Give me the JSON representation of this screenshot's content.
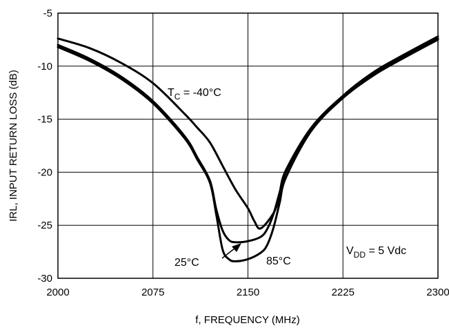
{
  "chart_data": {
    "type": "line",
    "xlabel": "f, FREQUENCY (MHz)",
    "ylabel": "IRL, INPUT RETURN LOSS (dB)",
    "xlim": [
      2000,
      2300
    ],
    "ylim": [
      -30,
      -5
    ],
    "xticks": [
      2000,
      2075,
      2150,
      2225,
      2300
    ],
    "yticks": [
      -5,
      -10,
      -15,
      -20,
      -25,
      -30
    ],
    "grid": true,
    "series": [
      {
        "name": "-40°C",
        "x": [
          2000,
          2025,
          2050,
          2075,
          2100,
          2110,
          2120,
          2130,
          2140,
          2150,
          2155,
          2160,
          2170,
          2175,
          2180,
          2200,
          2225,
          2250,
          2275,
          2300
        ],
        "y": [
          -7.4,
          -8.3,
          -9.7,
          -11.6,
          -14.5,
          -15.8,
          -17.2,
          -19.4,
          -21.6,
          -23.4,
          -24.6,
          -25.3,
          -23.9,
          -22.3,
          -20.0,
          -16.0,
          -12.8,
          -10.5,
          -8.8,
          -7.2
        ]
      },
      {
        "name": "25°C",
        "x": [
          2000,
          2025,
          2050,
          2075,
          2100,
          2110,
          2120,
          2125,
          2130,
          2135,
          2140,
          2150,
          2160,
          2165,
          2170,
          2175,
          2180,
          2200,
          2225,
          2250,
          2275,
          2300
        ],
        "y": [
          -8.0,
          -9.3,
          -11.0,
          -13.3,
          -16.6,
          -18.6,
          -20.8,
          -23.5,
          -25.5,
          -26.4,
          -26.6,
          -26.5,
          -26.1,
          -25.4,
          -24.0,
          -21.9,
          -19.8,
          -15.8,
          -12.8,
          -10.6,
          -8.9,
          -7.4
        ]
      },
      {
        "name": "85°C",
        "x": [
          2000,
          2025,
          2050,
          2075,
          2100,
          2110,
          2120,
          2125,
          2130,
          2135,
          2140,
          2150,
          2160,
          2165,
          2170,
          2175,
          2180,
          2200,
          2225,
          2250,
          2275,
          2300
        ],
        "y": [
          -8.2,
          -9.5,
          -11.2,
          -13.5,
          -16.8,
          -18.8,
          -21.0,
          -24.0,
          -27.3,
          -28.2,
          -28.4,
          -28.2,
          -27.6,
          -26.9,
          -25.3,
          -22.9,
          -20.5,
          -16.1,
          -13.0,
          -10.8,
          -9.1,
          -7.5
        ]
      }
    ],
    "annotations": {
      "tc_prefix": "T",
      "tc_sub": "C",
      "tc_suffix": " = -40°C",
      "t25": "25°C",
      "t85": "85°C",
      "vdd_prefix": "V",
      "vdd_sub": "DD",
      "vdd_suffix": " = 5 Vdc"
    }
  }
}
